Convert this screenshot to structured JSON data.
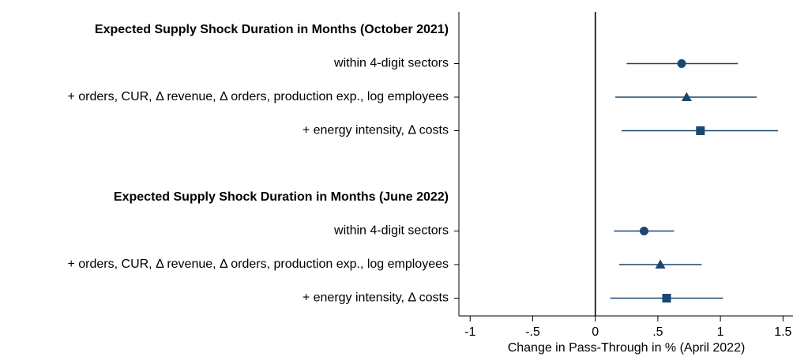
{
  "chart_data": {
    "type": "coefplot",
    "xlabel": "Change in Pass-Through in % (April 2022)",
    "xlim": [
      -1.09,
      1.58
    ],
    "xticks": [
      -1,
      {
        "value": -0.5,
        "label": "-.5"
      },
      0,
      {
        "value": 0.5,
        "label": ".5"
      },
      1,
      1.5
    ],
    "reference_line": 0,
    "color": "#1a476f",
    "groups": [
      {
        "title": "Expected Supply Shock Duration in Months (October 2021)",
        "rows": [
          {
            "label": "within 4-digit sectors",
            "value": 0.69,
            "ci": [
              0.25,
              1.14
            ],
            "marker": "circle"
          },
          {
            "label": "+ orders, CUR, Δ revenue, Δ orders, production exp., log employees",
            "value": 0.73,
            "ci": [
              0.16,
              1.29
            ],
            "marker": "triangle"
          },
          {
            "label": "+ energy intensity, Δ costs",
            "value": 0.84,
            "ci": [
              0.21,
              1.46
            ],
            "marker": "square"
          }
        ]
      },
      {
        "title": "Expected Supply Shock Duration in Months (June 2022)",
        "rows": [
          {
            "label": "within 4-digit sectors",
            "value": 0.39,
            "ci": [
              0.15,
              0.63
            ],
            "marker": "circle"
          },
          {
            "label": "+ orders, CUR, Δ revenue, Δ orders, production exp., log employees",
            "value": 0.52,
            "ci": [
              0.19,
              0.85
            ],
            "marker": "triangle"
          },
          {
            "label": "+ energy intensity, Δ costs",
            "value": 0.57,
            "ci": [
              0.12,
              1.02
            ],
            "marker": "square"
          }
        ]
      }
    ]
  }
}
